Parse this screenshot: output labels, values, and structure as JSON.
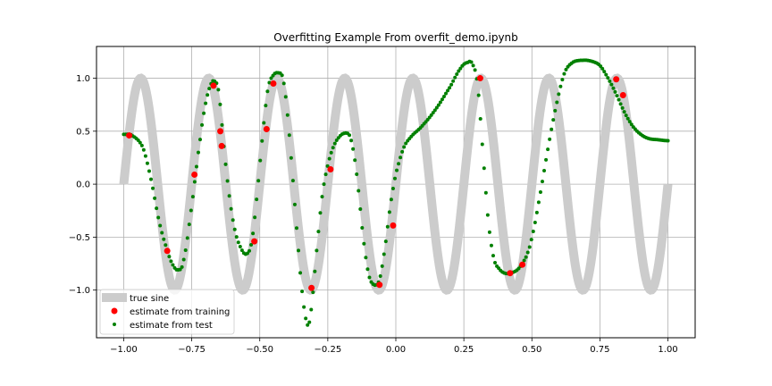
{
  "chart_data": {
    "type": "scatter",
    "title": "Overfitting Example From overfit_demo.ipynb",
    "xlabel": "",
    "ylabel": "",
    "xlim": [
      -1.1,
      1.1
    ],
    "ylim": [
      -1.45,
      1.3
    ],
    "grid": true,
    "x_ticks": [
      -1.0,
      -0.75,
      -0.5,
      -0.25,
      0.0,
      0.25,
      0.5,
      0.75,
      1.0
    ],
    "x_tick_labels": [
      "−1.00",
      "−0.75",
      "−0.50",
      "−0.25",
      "0.00",
      "0.25",
      "0.50",
      "0.75",
      "1.00"
    ],
    "y_ticks": [
      -1.0,
      -0.5,
      0.0,
      0.5,
      1.0
    ],
    "y_tick_labels": [
      "−1.0",
      "−0.5",
      "0.0",
      "0.5",
      "1.0"
    ],
    "legend_position": "lower-left",
    "series": [
      {
        "name": "true sine",
        "kind": "line",
        "color": "#cccccc",
        "frequency_cycles": 8,
        "x_range": [
          -1.0,
          1.0
        ]
      },
      {
        "name": "estimate from training",
        "kind": "scatter",
        "color": "#ff0000",
        "x": [
          -0.98,
          -0.84,
          -0.74,
          -0.67,
          -0.645,
          -0.64,
          -0.52,
          -0.475,
          -0.45,
          -0.31,
          -0.24,
          -0.06,
          -0.01,
          0.31,
          0.42,
          0.465,
          0.81,
          0.835
        ],
        "y": [
          0.46,
          -0.63,
          0.09,
          0.93,
          0.5,
          0.36,
          -0.54,
          0.52,
          0.95,
          -0.98,
          0.14,
          -0.95,
          -0.39,
          1.0,
          -0.84,
          -0.76,
          0.99,
          0.84
        ]
      },
      {
        "name": "estimate from test",
        "kind": "scatter",
        "color": "#008000",
        "knots_x": [
          -1.0,
          -0.97,
          -0.93,
          -0.9,
          -0.87,
          -0.84,
          -0.82,
          -0.8,
          -0.78,
          -0.75,
          -0.72,
          -0.7,
          -0.68,
          -0.665,
          -0.65,
          -0.63,
          -0.61,
          -0.59,
          -0.57,
          -0.55,
          -0.53,
          -0.51,
          -0.49,
          -0.47,
          -0.45,
          -0.43,
          -0.415,
          -0.4,
          -0.38,
          -0.36,
          -0.345,
          -0.33,
          -0.32,
          -0.31,
          -0.29,
          -0.27,
          -0.25,
          -0.23,
          -0.21,
          -0.19,
          -0.17,
          -0.155,
          -0.14,
          -0.12,
          -0.1,
          -0.08,
          -0.06,
          -0.04,
          -0.02,
          0.0,
          0.03,
          0.06,
          0.1,
          0.15,
          0.2,
          0.24,
          0.265,
          0.28,
          0.3,
          0.32,
          0.34,
          0.36,
          0.38,
          0.4,
          0.42,
          0.45,
          0.48,
          0.5,
          0.53,
          0.56,
          0.59,
          0.62,
          0.65,
          0.69,
          0.72,
          0.75,
          0.78,
          0.81,
          0.84,
          0.87,
          0.9,
          0.93,
          0.96,
          1.0
        ],
        "knots_y": [
          0.47,
          0.46,
          0.35,
          0.05,
          -0.35,
          -0.62,
          -0.76,
          -0.81,
          -0.72,
          -0.2,
          0.4,
          0.75,
          0.94,
          0.97,
          0.85,
          0.3,
          -0.15,
          -0.45,
          -0.6,
          -0.66,
          -0.55,
          -0.1,
          0.45,
          0.9,
          1.03,
          1.05,
          1.0,
          0.7,
          0.1,
          -0.55,
          -1.0,
          -1.28,
          -1.32,
          -1.15,
          -0.6,
          -0.1,
          0.18,
          0.35,
          0.44,
          0.48,
          0.46,
          0.3,
          0.0,
          -0.5,
          -0.85,
          -0.95,
          -0.9,
          -0.6,
          -0.2,
          0.1,
          0.35,
          0.46,
          0.56,
          0.72,
          0.92,
          1.1,
          1.15,
          1.14,
          0.95,
          0.3,
          -0.35,
          -0.7,
          -0.8,
          -0.84,
          -0.84,
          -0.8,
          -0.68,
          -0.5,
          -0.1,
          0.35,
          0.75,
          1.05,
          1.15,
          1.17,
          1.16,
          1.12,
          1.0,
          0.85,
          0.68,
          0.55,
          0.47,
          0.43,
          0.42,
          0.41
        ],
        "dot_count": 300
      }
    ]
  }
}
